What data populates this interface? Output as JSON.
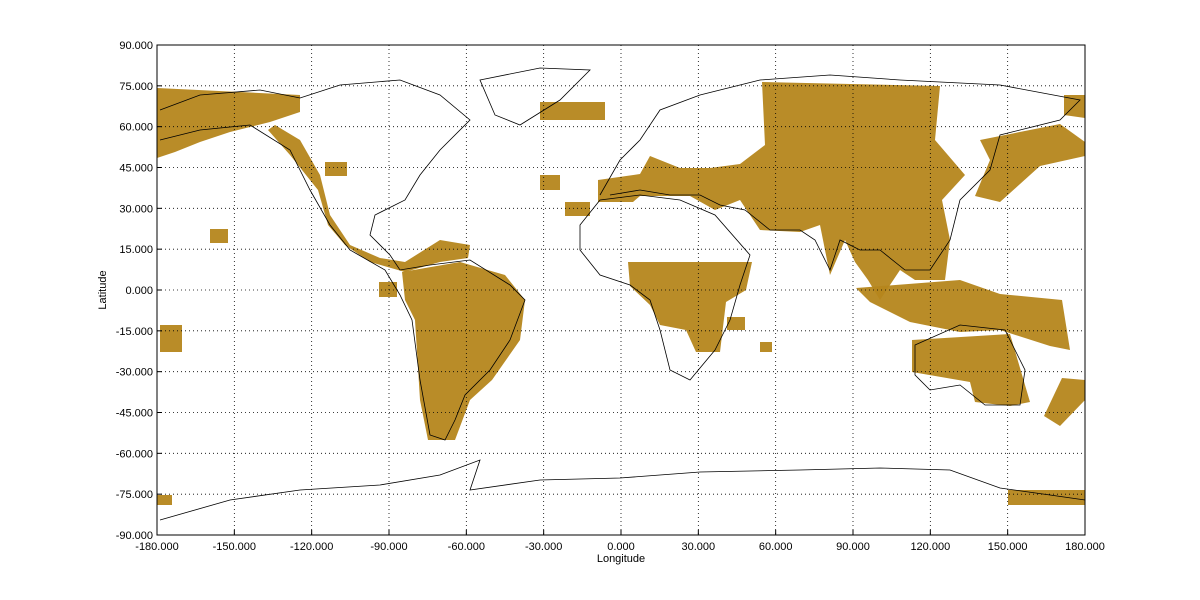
{
  "chart_data": {
    "type": "map",
    "xlabel": "Longitude",
    "ylabel": "Latitude",
    "xlim": [
      -180,
      180
    ],
    "ylim": [
      -90,
      90
    ],
    "xticks": [
      {
        "value": -180,
        "label": "-180.000"
      },
      {
        "value": -150,
        "label": "-150.000"
      },
      {
        "value": -120,
        "label": "-120.000"
      },
      {
        "value": -90,
        "label": "-90.000"
      },
      {
        "value": -60,
        "label": "-60.000"
      },
      {
        "value": -30,
        "label": "-30.000"
      },
      {
        "value": 0,
        "label": "0.000"
      },
      {
        "value": 30,
        "label": "30.000"
      },
      {
        "value": 60,
        "label": "60.000"
      },
      {
        "value": 90,
        "label": "90.000"
      },
      {
        "value": 120,
        "label": "120.000"
      },
      {
        "value": 150,
        "label": "150.000"
      },
      {
        "value": 180,
        "label": "180.000"
      }
    ],
    "yticks": [
      {
        "value": -90,
        "label": "-90.000"
      },
      {
        "value": -75,
        "label": "-75.000"
      },
      {
        "value": -60,
        "label": "-60.000"
      },
      {
        "value": -45,
        "label": "-45.000"
      },
      {
        "value": -30,
        "label": "-30.000"
      },
      {
        "value": -15,
        "label": "-15.000"
      },
      {
        "value": 0,
        "label": "0.000"
      },
      {
        "value": 15,
        "label": "15.000"
      },
      {
        "value": 30,
        "label": "30.000"
      },
      {
        "value": 45,
        "label": "45.000"
      },
      {
        "value": 60,
        "label": "60.000"
      },
      {
        "value": 75,
        "label": "75.000"
      },
      {
        "value": 90,
        "label": "90.000"
      }
    ],
    "grid": true,
    "color": "#b5861c"
  }
}
